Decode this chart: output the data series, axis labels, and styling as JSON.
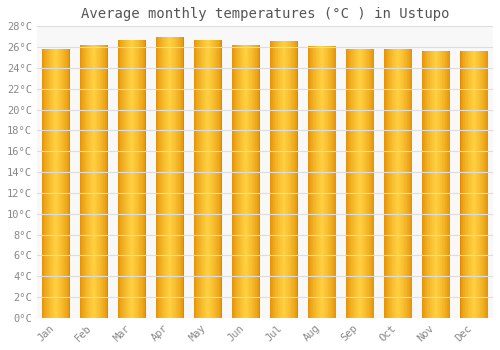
{
  "title": "Average monthly temperatures (°C ) in Ustupo",
  "months": [
    "Jan",
    "Feb",
    "Mar",
    "Apr",
    "May",
    "Jun",
    "Jul",
    "Aug",
    "Sep",
    "Oct",
    "Nov",
    "Dec"
  ],
  "values": [
    25.8,
    26.2,
    26.7,
    27.0,
    26.7,
    26.2,
    26.6,
    26.1,
    25.8,
    25.8,
    25.6,
    25.6
  ],
  "bar_color_center": "#FFB300",
  "bar_color_edge": "#E08000",
  "bar_color_highlight": "#FFD060",
  "ylim": [
    0,
    28
  ],
  "ytick_step": 2,
  "background_color": "#FFFFFF",
  "plot_bg_color": "#F8F8F8",
  "grid_color": "#DDDDDD",
  "title_fontsize": 10,
  "tick_fontsize": 7.5,
  "bar_width": 0.75
}
